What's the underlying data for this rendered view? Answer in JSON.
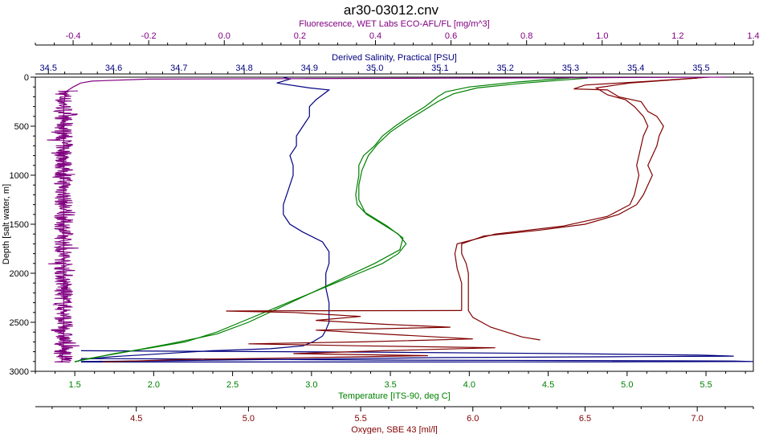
{
  "chart_data": {
    "type": "line",
    "title": "ar30-03012.cnv",
    "grid": false,
    "legend": "none",
    "y_axis": {
      "label": "Depth [salt water, m]",
      "range": [
        0,
        3000
      ],
      "inverted": true,
      "ticks": [
        "0",
        "500",
        "1000",
        "1500",
        "2000",
        "2500",
        "3000"
      ],
      "color": "#000000"
    },
    "x_axes": [
      {
        "name": "fluorescence",
        "label": "Fluorescence, WET Labs ECO-AFL/FL [mg/m^3]",
        "position": "top",
        "range": [
          -0.5,
          1.4
        ],
        "ticks": [
          "-0.4",
          "-0.2",
          "0.0",
          "0.2",
          "0.4",
          "0.6",
          "0.8",
          "1.0",
          "1.2",
          "1.4"
        ],
        "color": "#800080"
      },
      {
        "name": "salinity",
        "label": "Derived Salinity, Practical [PSU]",
        "position": "top",
        "range": [
          34.48,
          35.58
        ],
        "ticks": [
          "34.5",
          "34.6",
          "34.7",
          "34.8",
          "34.9",
          "35.0",
          "35.1",
          "35.2",
          "35.3",
          "35.4",
          "35.5"
        ],
        "color": "#000080"
      },
      {
        "name": "temperature",
        "label": "Temperature [ITS-90, deg C]",
        "position": "bottom",
        "range": [
          1.25,
          5.8
        ],
        "ticks": [
          "1.5",
          "2.0",
          "2.5",
          "3.0",
          "3.5",
          "4.0",
          "4.5",
          "5.0",
          "5.5"
        ],
        "color": "#008000"
      },
      {
        "name": "oxygen",
        "label": "Oxygen, SBE 43 [ml/l]",
        "position": "bottom",
        "range": [
          4.05,
          7.25
        ],
        "ticks": [
          "4.5",
          "5.0",
          "5.5",
          "6.0",
          "6.5",
          "7.0"
        ],
        "color": "#800000"
      }
    ],
    "series": [
      {
        "axis": "salinity",
        "color": "#000080",
        "points": [
          [
            34.86,
            0
          ],
          [
            34.87,
            20
          ],
          [
            34.85,
            60
          ],
          [
            34.9,
            110
          ],
          [
            34.93,
            130
          ],
          [
            34.92,
            180
          ],
          [
            34.91,
            230
          ],
          [
            34.9,
            300
          ],
          [
            34.9,
            400
          ],
          [
            34.89,
            500
          ],
          [
            34.88,
            600
          ],
          [
            34.88,
            700
          ],
          [
            34.87,
            800
          ],
          [
            34.875,
            900
          ],
          [
            34.875,
            1000
          ],
          [
            34.87,
            1100
          ],
          [
            34.865,
            1200
          ],
          [
            34.86,
            1300
          ],
          [
            34.86,
            1400
          ],
          [
            34.87,
            1500
          ],
          [
            34.89,
            1580
          ],
          [
            34.92,
            1680
          ],
          [
            34.93,
            1780
          ],
          [
            34.93,
            1900
          ],
          [
            34.925,
            2000
          ],
          [
            34.925,
            2150
          ],
          [
            34.93,
            2300
          ],
          [
            34.93,
            2400
          ],
          [
            34.93,
            2500
          ],
          [
            34.925,
            2580
          ],
          [
            34.92,
            2640
          ],
          [
            34.905,
            2700
          ],
          [
            34.89,
            2740
          ],
          [
            34.84,
            2770
          ],
          [
            34.75,
            2790
          ],
          [
            34.7,
            2810
          ],
          [
            34.65,
            2830
          ],
          [
            34.6,
            2850
          ],
          [
            34.55,
            2880
          ],
          [
            34.545,
            2900
          ]
        ]
      },
      {
        "axis": "salinity",
        "color": "#000080",
        "points": [
          [
            34.55,
            2790
          ],
          [
            34.7,
            2795
          ],
          [
            35.0,
            2805
          ],
          [
            35.3,
            2820
          ],
          [
            35.5,
            2835
          ],
          [
            35.55,
            2845
          ],
          [
            35.4,
            2850
          ],
          [
            35.1,
            2860
          ],
          [
            34.9,
            2875
          ],
          [
            34.7,
            2890
          ],
          [
            34.55,
            2900
          ]
        ]
      },
      {
        "axis": "salinity",
        "color": "#000080",
        "points": [
          [
            34.55,
            2870
          ],
          [
            34.75,
            2875
          ],
          [
            35.0,
            2885
          ],
          [
            35.3,
            2890
          ],
          [
            35.55,
            2895
          ],
          [
            35.58,
            2900
          ],
          [
            35.4,
            2903
          ],
          [
            35.1,
            2905
          ],
          [
            34.8,
            2905
          ],
          [
            34.55,
            2905
          ]
        ]
      },
      {
        "axis": "temperature",
        "color": "#008000",
        "points": [
          [
            4.7,
            0
          ],
          [
            4.3,
            50
          ],
          [
            4.0,
            100
          ],
          [
            3.85,
            150
          ],
          [
            3.8,
            200
          ],
          [
            3.72,
            300
          ],
          [
            3.62,
            400
          ],
          [
            3.53,
            500
          ],
          [
            3.45,
            600
          ],
          [
            3.4,
            700
          ],
          [
            3.33,
            800
          ],
          [
            3.3,
            900
          ],
          [
            3.3,
            1000
          ],
          [
            3.29,
            1100
          ],
          [
            3.28,
            1200
          ],
          [
            3.29,
            1300
          ],
          [
            3.35,
            1400
          ],
          [
            3.45,
            1500
          ],
          [
            3.55,
            1600
          ],
          [
            3.6,
            1700
          ],
          [
            3.55,
            1800
          ],
          [
            3.45,
            1900
          ],
          [
            3.3,
            2000
          ],
          [
            3.15,
            2100
          ],
          [
            3.0,
            2200
          ],
          [
            2.85,
            2300
          ],
          [
            2.7,
            2400
          ],
          [
            2.55,
            2500
          ],
          [
            2.4,
            2600
          ],
          [
            2.2,
            2700
          ],
          [
            1.95,
            2770
          ],
          [
            1.75,
            2820
          ],
          [
            1.6,
            2870
          ],
          [
            1.5,
            2900
          ]
        ]
      },
      {
        "axis": "temperature",
        "color": "#008000",
        "points": [
          [
            4.75,
            10
          ],
          [
            4.35,
            60
          ],
          [
            4.05,
            110
          ],
          [
            3.9,
            170
          ],
          [
            3.8,
            250
          ],
          [
            3.7,
            350
          ],
          [
            3.6,
            450
          ],
          [
            3.5,
            560
          ],
          [
            3.42,
            680
          ],
          [
            3.36,
            800
          ],
          [
            3.32,
            950
          ],
          [
            3.3,
            1100
          ],
          [
            3.3,
            1250
          ],
          [
            3.34,
            1380
          ],
          [
            3.48,
            1520
          ],
          [
            3.58,
            1640
          ],
          [
            3.56,
            1760
          ],
          [
            3.4,
            1900
          ],
          [
            3.2,
            2050
          ],
          [
            3.0,
            2200
          ],
          [
            2.8,
            2350
          ],
          [
            2.6,
            2500
          ],
          [
            2.4,
            2620
          ],
          [
            2.1,
            2720
          ],
          [
            1.8,
            2810
          ],
          [
            1.55,
            2880
          ],
          [
            1.5,
            2905
          ]
        ]
      },
      {
        "axis": "oxygen",
        "color": "#800000",
        "points": [
          [
            7.05,
            0
          ],
          [
            6.8,
            40
          ],
          [
            6.5,
            80
          ],
          [
            6.45,
            120
          ],
          [
            6.6,
            130
          ],
          [
            6.65,
            200
          ],
          [
            6.75,
            250
          ],
          [
            6.78,
            350
          ],
          [
            6.82,
            400
          ],
          [
            6.85,
            500
          ],
          [
            6.83,
            600
          ],
          [
            6.82,
            700
          ],
          [
            6.8,
            800
          ],
          [
            6.78,
            900
          ],
          [
            6.8,
            1000
          ],
          [
            6.78,
            1100
          ],
          [
            6.76,
            1200
          ],
          [
            6.73,
            1300
          ],
          [
            6.65,
            1400
          ],
          [
            6.5,
            1500
          ],
          [
            6.3,
            1560
          ],
          [
            6.05,
            1620
          ],
          [
            5.95,
            1700
          ],
          [
            5.95,
            1800
          ],
          [
            5.97,
            1900
          ],
          [
            5.98,
            2000
          ],
          [
            5.98,
            2150
          ],
          [
            5.98,
            2300
          ],
          [
            5.98,
            2380
          ],
          [
            6.0,
            2450
          ],
          [
            6.08,
            2550
          ],
          [
            6.15,
            2600
          ],
          [
            6.22,
            2650
          ],
          [
            6.3,
            2680
          ]
        ]
      },
      {
        "axis": "oxygen",
        "color": "#800000",
        "points": [
          [
            7.0,
            10
          ],
          [
            6.7,
            60
          ],
          [
            6.55,
            110
          ],
          [
            6.6,
            180
          ],
          [
            6.68,
            230
          ],
          [
            6.72,
            300
          ],
          [
            6.76,
            400
          ],
          [
            6.78,
            500
          ],
          [
            6.76,
            600
          ],
          [
            6.75,
            700
          ],
          [
            6.74,
            800
          ],
          [
            6.73,
            900
          ],
          [
            6.74,
            1000
          ],
          [
            6.73,
            1100
          ],
          [
            6.72,
            1200
          ],
          [
            6.7,
            1300
          ],
          [
            6.6,
            1420
          ],
          [
            6.4,
            1520
          ],
          [
            6.1,
            1600
          ],
          [
            5.93,
            1700
          ],
          [
            5.92,
            1800
          ],
          [
            5.93,
            1950
          ],
          [
            5.95,
            2100
          ],
          [
            5.95,
            2250
          ],
          [
            5.95,
            2380
          ]
        ]
      },
      {
        "axis": "oxygen",
        "color": "#800000",
        "points": [
          [
            5.95,
            2380
          ],
          [
            5.3,
            2382
          ],
          [
            4.9,
            2385
          ],
          [
            5.2,
            2400
          ],
          [
            5.5,
            2440
          ],
          [
            5.3,
            2480
          ],
          [
            5.6,
            2520
          ],
          [
            5.9,
            2550
          ],
          [
            5.3,
            2580
          ],
          [
            5.6,
            2620
          ],
          [
            6.0,
            2670
          ],
          [
            5.5,
            2700
          ],
          [
            5.0,
            2720
          ],
          [
            5.5,
            2740
          ],
          [
            6.1,
            2760
          ],
          [
            5.6,
            2790
          ],
          [
            5.2,
            2820
          ],
          [
            5.8,
            2840
          ],
          [
            5.3,
            2860
          ],
          [
            4.7,
            2880
          ],
          [
            4.35,
            2905
          ]
        ]
      },
      {
        "axis": "fluorescence",
        "color": "#800080",
        "points": [
          [
            1.33,
            0
          ],
          [
            1.0,
            5
          ],
          [
            0.6,
            10
          ],
          [
            0.2,
            15
          ],
          [
            -0.2,
            20
          ],
          [
            -0.35,
            40
          ],
          [
            -0.38,
            60
          ],
          [
            -0.39,
            80
          ],
          [
            -0.4,
            100
          ],
          [
            -0.42,
            150
          ],
          [
            -0.425,
            300
          ],
          [
            -0.425,
            2700
          ],
          [
            -0.43,
            2900
          ]
        ]
      }
    ],
    "noise_band": {
      "axis": "fluorescence",
      "color": "#800080",
      "center": -0.425,
      "half_width": 0.025,
      "depth_range": [
        140,
        2910
      ]
    }
  }
}
